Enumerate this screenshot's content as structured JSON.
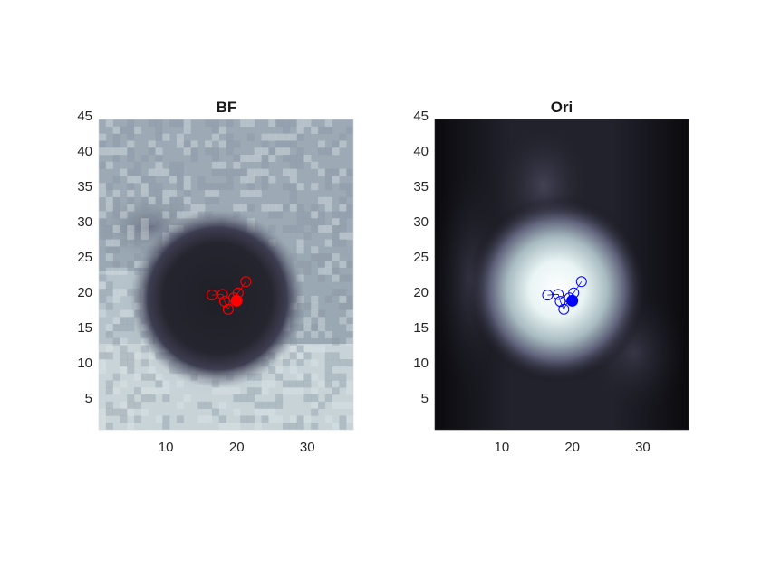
{
  "chart_data": [
    {
      "type": "heatmap",
      "title": "BF",
      "colormap": "bone",
      "image": "bright-field intensity map: dark circular blob near center on light noisy background, dark arc at bottom edge",
      "xlim": [
        0.5,
        36.5
      ],
      "ylim": [
        0.5,
        44.5
      ],
      "y_direction": "normal",
      "xticks": [
        10,
        20,
        30
      ],
      "yticks": [
        5,
        10,
        15,
        20,
        25,
        30,
        35,
        40,
        45
      ],
      "marker_color": "#ff0000",
      "track_points": [
        {
          "x": 16.5,
          "y": 19.6
        },
        {
          "x": 18.0,
          "y": 19.7
        },
        {
          "x": 18.3,
          "y": 18.7
        },
        {
          "x": 18.8,
          "y": 17.6
        },
        {
          "x": 19.6,
          "y": 19.2
        },
        {
          "x": 20.2,
          "y": 19.9
        },
        {
          "x": 21.3,
          "y": 21.5
        }
      ],
      "current_point": {
        "x": 20.0,
        "y": 18.8
      }
    },
    {
      "type": "heatmap",
      "title": "Ori",
      "colormap": "bone",
      "image": "smoothed orientation map: bright circular blob near center on dark background, bright arc at bottom edge",
      "xlim": [
        0.5,
        36.5
      ],
      "ylim": [
        0.5,
        44.5
      ],
      "y_direction": "normal",
      "xticks": [
        10,
        20,
        30
      ],
      "yticks": [
        5,
        10,
        15,
        20,
        25,
        30,
        35,
        40,
        45
      ],
      "marker_color": "#0000ff",
      "track_points": [
        {
          "x": 16.5,
          "y": 19.6
        },
        {
          "x": 18.0,
          "y": 19.7
        },
        {
          "x": 18.3,
          "y": 18.7
        },
        {
          "x": 18.8,
          "y": 17.6
        },
        {
          "x": 19.6,
          "y": 19.2
        },
        {
          "x": 20.2,
          "y": 19.9
        },
        {
          "x": 21.3,
          "y": 21.5
        }
      ],
      "current_point": {
        "x": 20.0,
        "y": 18.8
      }
    }
  ]
}
